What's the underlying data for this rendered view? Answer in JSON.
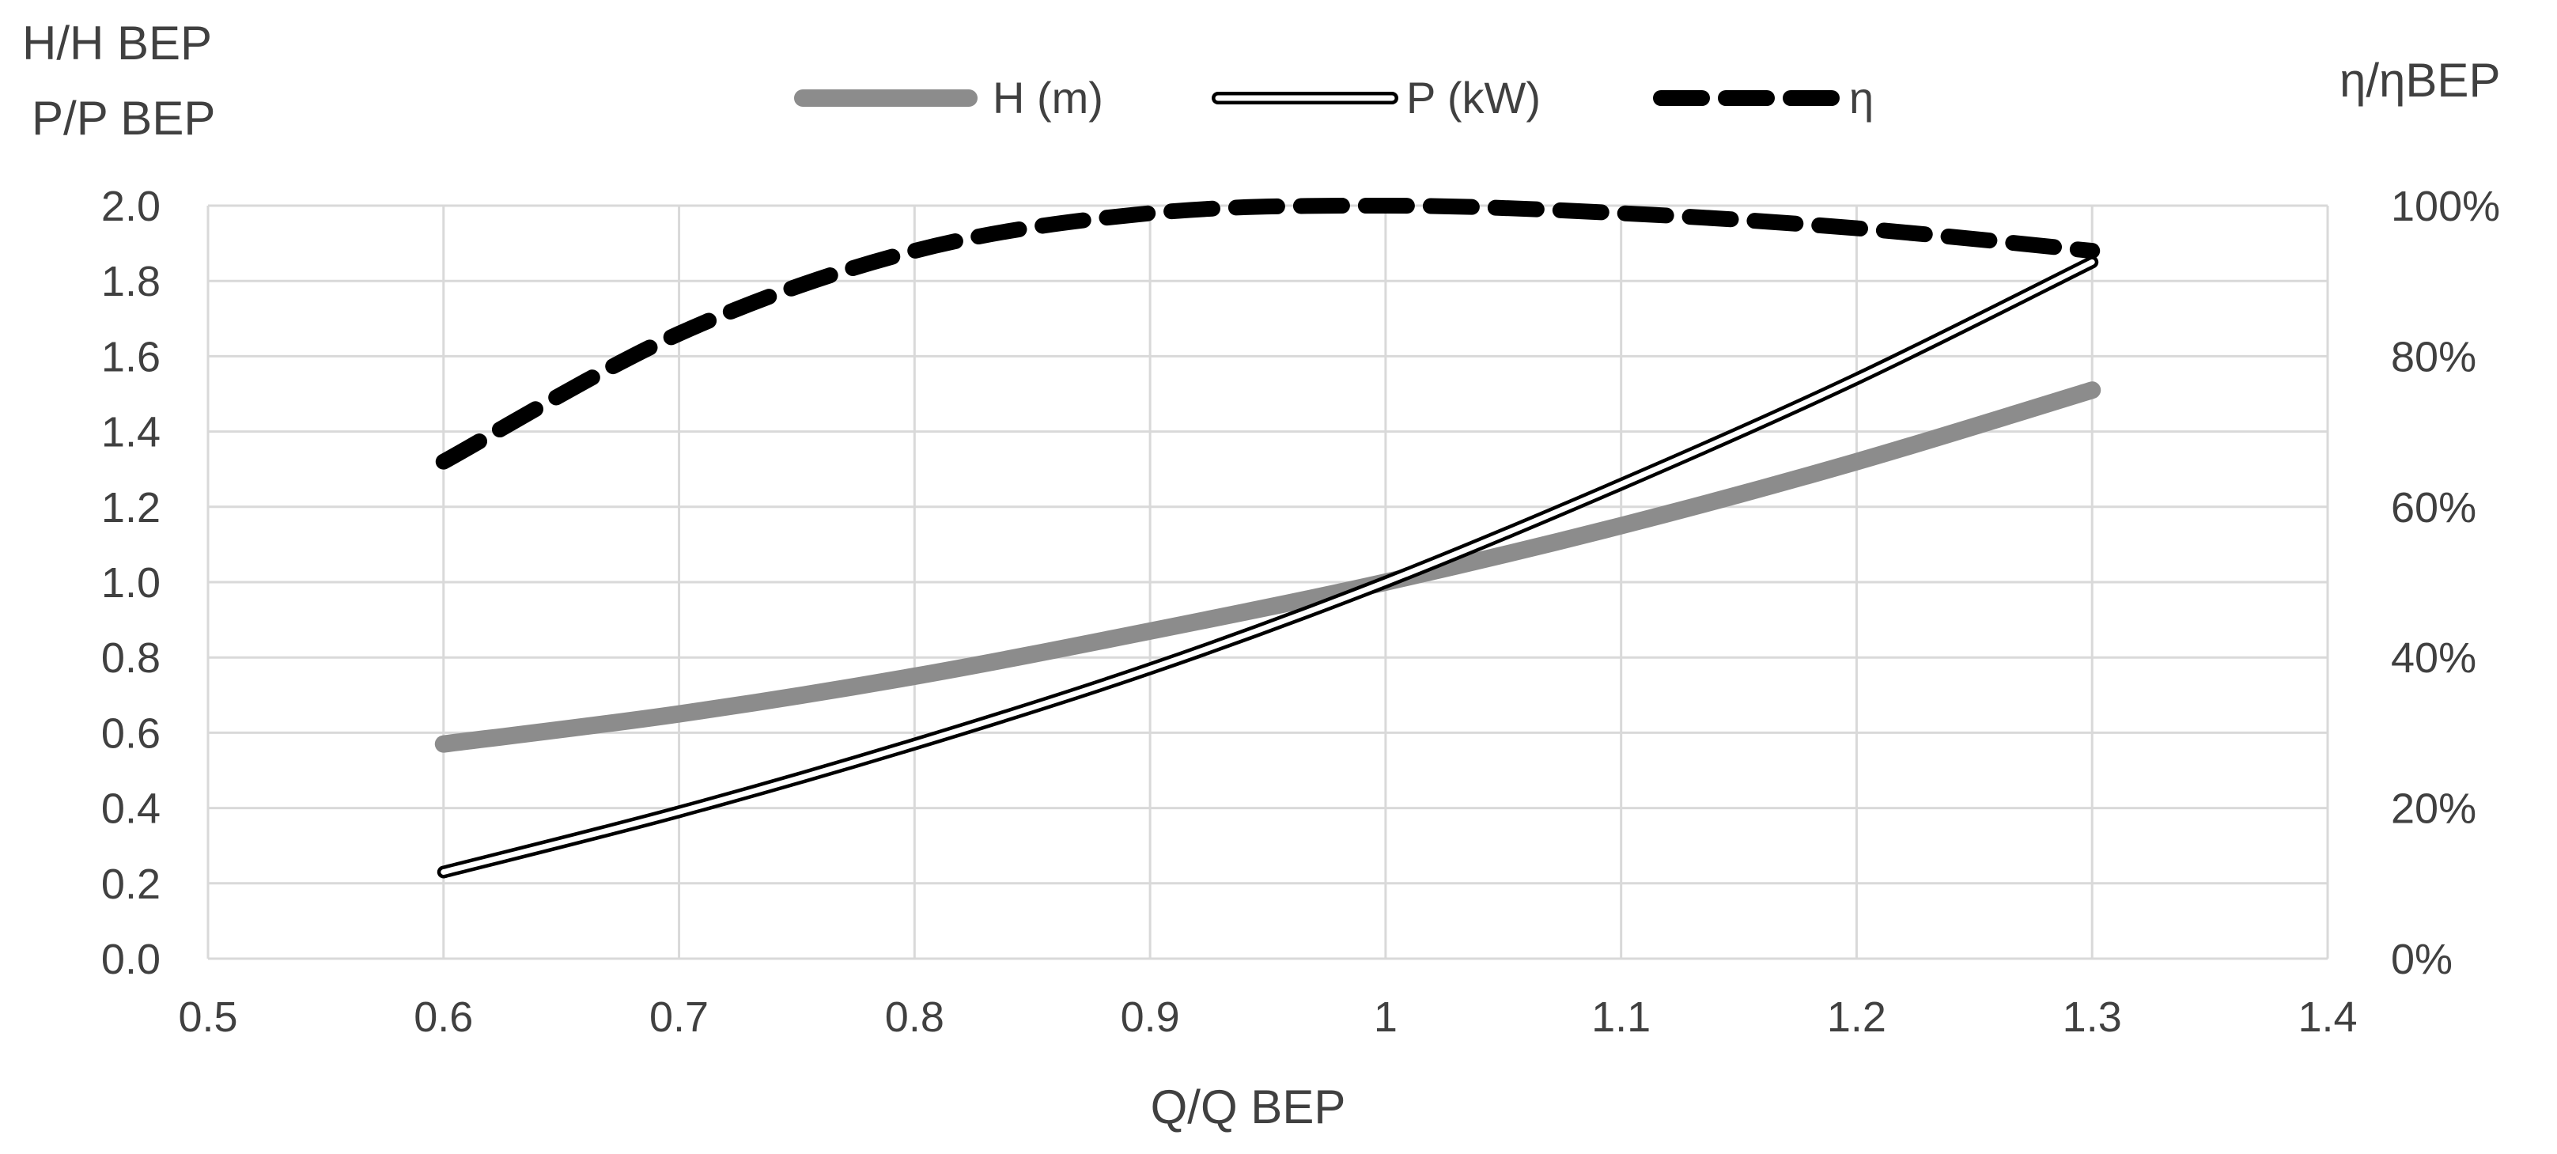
{
  "chart_data": {
    "type": "line",
    "title": "",
    "xlabel": "Q/Q BEP",
    "ylabel_lines": [
      "H/H BEP",
      "P/P BEP"
    ],
    "y2label": "η/ηBEP",
    "xlim": [
      0.5,
      1.4
    ],
    "ylim": [
      0.0,
      2.0
    ],
    "y2lim": [
      0,
      100
    ],
    "grid": true,
    "legend_position": "top-center",
    "x_ticks": [
      "0.5",
      "0.6",
      "0.7",
      "0.8",
      "0.9",
      "1",
      "1.1",
      "1.2",
      "1.3",
      "1.4"
    ],
    "y_ticks": [
      "0.0",
      "0.2",
      "0.4",
      "0.6",
      "0.8",
      "1.0",
      "1.2",
      "1.4",
      "1.6",
      "1.8",
      "2.0"
    ],
    "y2_ticks": [
      "0%",
      "20%",
      "40%",
      "60%",
      "80%",
      "100%"
    ],
    "x": [
      0.6,
      0.7,
      0.8,
      0.9,
      1.0,
      1.1,
      1.2,
      1.3
    ],
    "series": [
      {
        "name": "H (m)",
        "axis": "left",
        "style": "thick-gray",
        "color": "#8c8c8c",
        "values": [
          0.57,
          0.65,
          0.75,
          0.87,
          1.0,
          1.15,
          1.32,
          1.51
        ]
      },
      {
        "name": "P (kW)",
        "axis": "left",
        "style": "double-line",
        "color": "#000000",
        "values": [
          0.23,
          0.39,
          0.57,
          0.77,
          1.0,
          1.26,
          1.54,
          1.85
        ]
      },
      {
        "name": "η",
        "axis": "right",
        "style": "dashed",
        "color": "#000000",
        "values": [
          66,
          83,
          94,
          99,
          100,
          99,
          97,
          94
        ]
      }
    ]
  }
}
